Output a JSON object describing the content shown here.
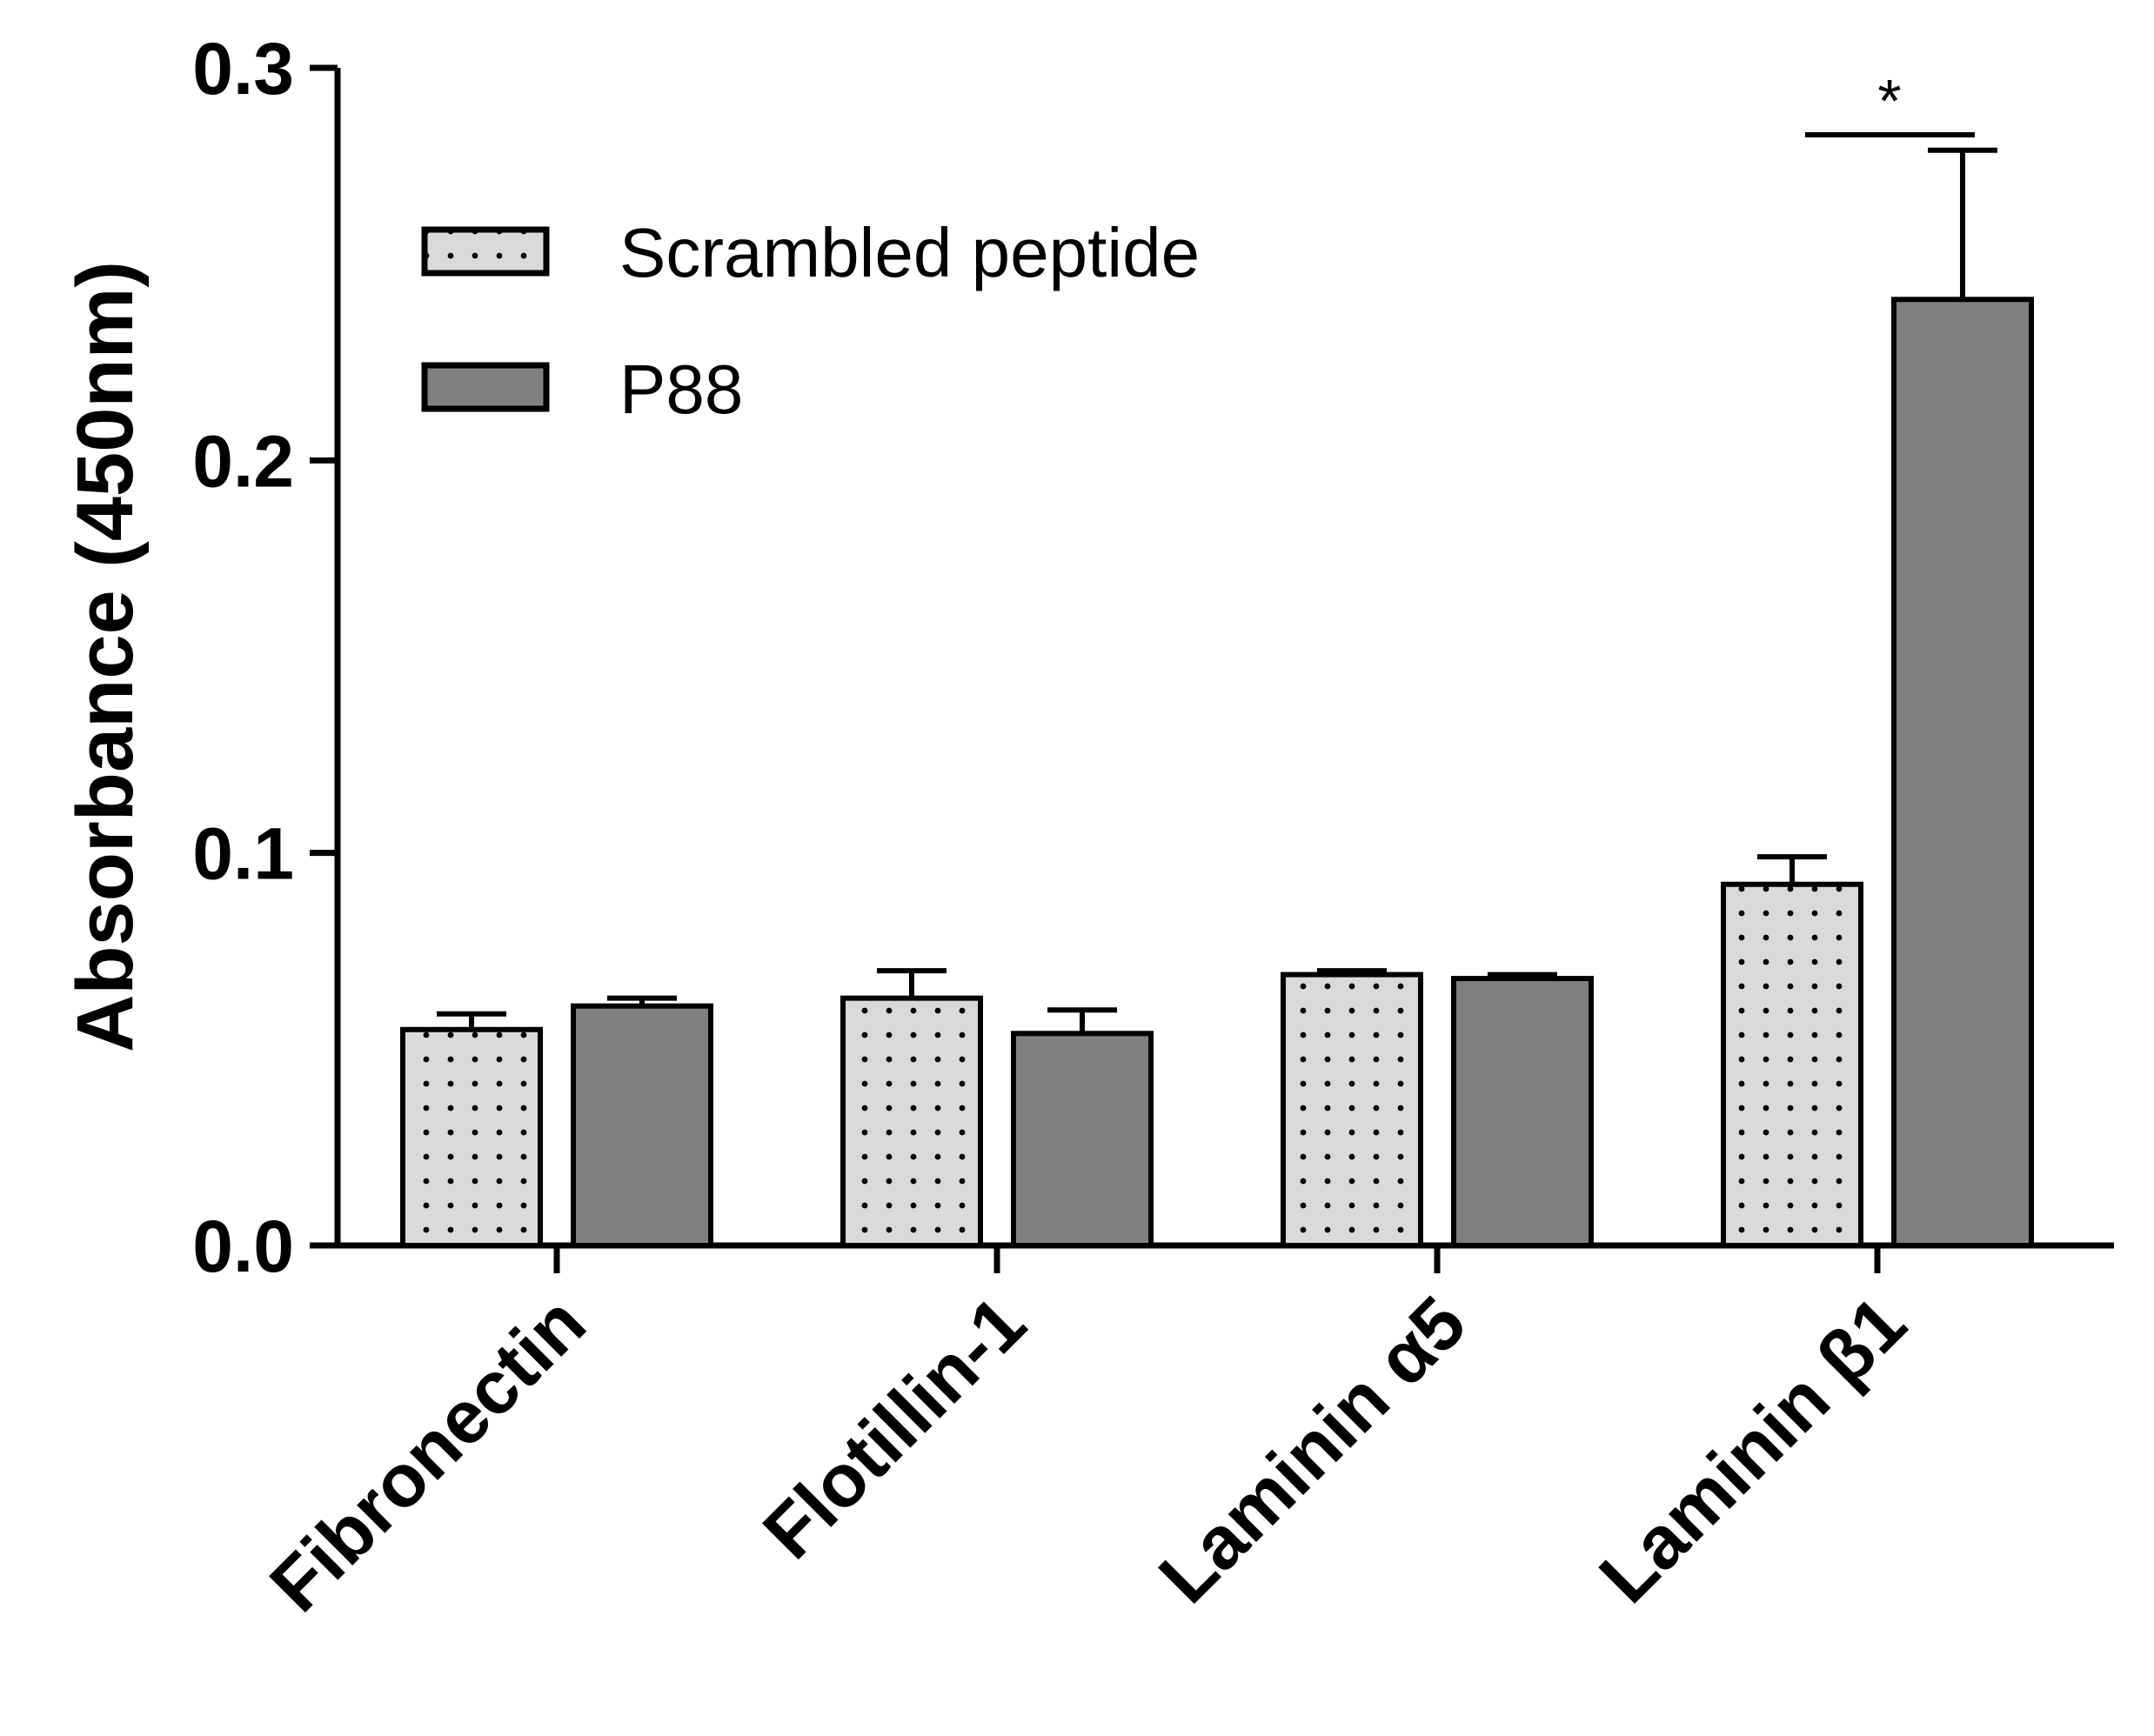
{
  "chart_data": {
    "type": "bar",
    "title": "",
    "xlabel": "",
    "ylabel": "Absorbance (450nm)",
    "ylim": [
      0,
      0.3
    ],
    "yticks": [
      "0.0",
      "0.1",
      "0.2",
      "0.3"
    ],
    "categories": [
      "Fibronectin",
      "Flotillin-1",
      "Laminin α5",
      "Laminin β1"
    ],
    "series": [
      {
        "name": "Scrambled peptide",
        "values": [
          0.055,
          0.063,
          0.069,
          0.092
        ],
        "errors": [
          0.004,
          0.007,
          0.001,
          0.007
        ],
        "fill": "#d9d9d9",
        "pattern": "dots"
      },
      {
        "name": "P88",
        "values": [
          0.061,
          0.054,
          0.068,
          0.241
        ],
        "errors": [
          0.002,
          0.006,
          0.001,
          0.038
        ],
        "fill": "#808080",
        "pattern": "solid"
      }
    ],
    "legend": {
      "position": "top-left"
    },
    "annotations": [
      {
        "text": "*",
        "category": "Laminin β1",
        "type": "significance"
      }
    ],
    "grid": false
  }
}
